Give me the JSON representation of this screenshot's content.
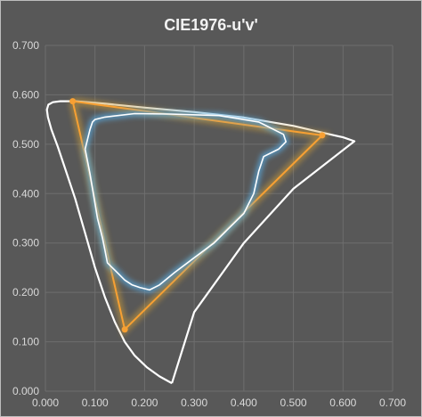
{
  "chart_data": {
    "type": "line",
    "title": "CIE1976-u'v'",
    "xlabel": "",
    "ylabel": "",
    "xlim": [
      0.0,
      0.7
    ],
    "ylim": [
      0.0,
      0.7
    ],
    "x_ticks": [
      "0.000",
      "0.100",
      "0.200",
      "0.300",
      "0.400",
      "0.500",
      "0.600",
      "0.700"
    ],
    "y_ticks": [
      "0.000",
      "0.100",
      "0.200",
      "0.300",
      "0.400",
      "0.500",
      "0.600",
      "0.700"
    ],
    "grid": true,
    "legend": "none",
    "colors": {
      "background": "#585858",
      "grid": "#6e6e6e",
      "spectral_locus": "#ffffff",
      "gamut_triangle": "#f7a033",
      "gamut_glow": "#c89a3a",
      "measured_gamut": "#ffffff",
      "measured_glow": "#5aaee6"
    },
    "series": [
      {
        "kind": "spectral-locus",
        "x": [
          0.255,
          0.23,
          0.205,
          0.18,
          0.16,
          0.14,
          0.12,
          0.1,
          0.08,
          0.06,
          0.04,
          0.025,
          0.012,
          0.005,
          0.003,
          0.006,
          0.015,
          0.03,
          0.06,
          0.12,
          0.2,
          0.3,
          0.4,
          0.5,
          0.56,
          0.6,
          0.623,
          0.5,
          0.4,
          0.3,
          0.255
        ],
        "y": [
          0.016,
          0.03,
          0.048,
          0.072,
          0.1,
          0.14,
          0.19,
          0.25,
          0.32,
          0.39,
          0.45,
          0.495,
          0.53,
          0.555,
          0.57,
          0.58,
          0.585,
          0.587,
          0.587,
          0.582,
          0.574,
          0.565,
          0.554,
          0.537,
          0.523,
          0.514,
          0.506,
          0.41,
          0.3,
          0.16,
          0.016
        ]
      },
      {
        "kind": "gamut-triangle",
        "x": [
          0.055,
          0.558,
          0.16,
          0.055
        ],
        "y": [
          0.587,
          0.518,
          0.125,
          0.587
        ]
      },
      {
        "kind": "measured-gamut",
        "x": [
          0.08,
          0.09,
          0.095,
          0.1,
          0.12,
          0.18,
          0.25,
          0.35,
          0.43,
          0.48,
          0.485,
          0.47,
          0.44,
          0.43,
          0.42,
          0.4,
          0.37,
          0.34,
          0.3,
          0.26,
          0.23,
          0.21,
          0.19,
          0.175,
          0.16,
          0.14,
          0.125,
          0.12,
          0.115,
          0.11,
          0.105,
          0.1,
          0.095,
          0.09,
          0.085,
          0.08
        ],
        "y": [
          0.49,
          0.53,
          0.545,
          0.55,
          0.555,
          0.562,
          0.561,
          0.558,
          0.545,
          0.52,
          0.505,
          0.49,
          0.475,
          0.445,
          0.4,
          0.36,
          0.33,
          0.3,
          0.27,
          0.24,
          0.215,
          0.205,
          0.21,
          0.215,
          0.225,
          0.245,
          0.26,
          0.285,
          0.31,
          0.33,
          0.35,
          0.38,
          0.41,
          0.44,
          0.465,
          0.49
        ]
      }
    ]
  }
}
